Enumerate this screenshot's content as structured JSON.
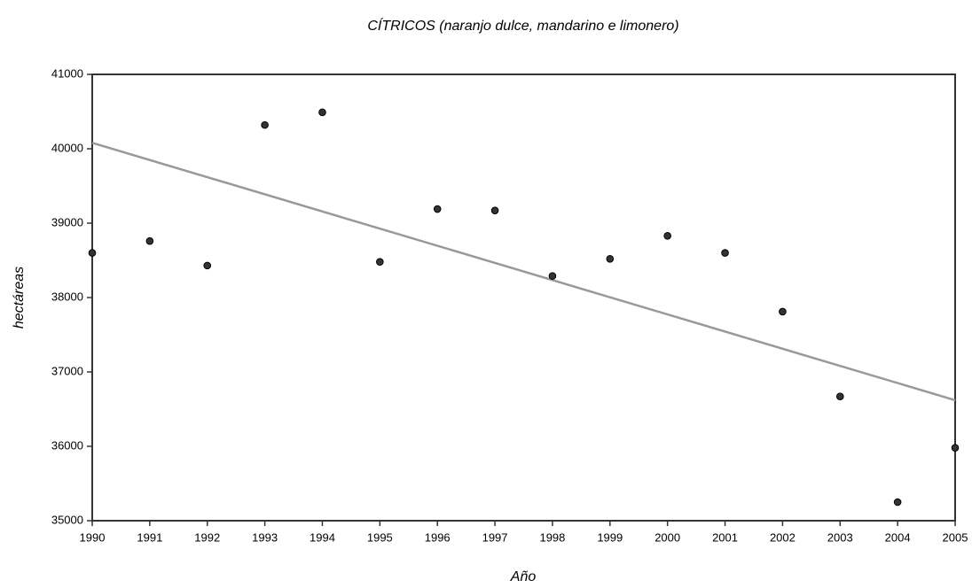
{
  "chart_data": {
    "type": "scatter",
    "title": "CÍTRICOS (naranjo dulce, mandarino e limonero)",
    "x_label": "Año",
    "y_label": "hectáreas",
    "x": [
      1990,
      1991,
      1992,
      1993,
      1994,
      1995,
      1996,
      1997,
      1998,
      1999,
      2000,
      2001,
      2002,
      2003,
      2004,
      2005
    ],
    "values": [
      38600,
      38760,
      38430,
      40320,
      40490,
      38480,
      39190,
      39170,
      38290,
      38520,
      38830,
      38600,
      37810,
      36670,
      35250,
      35980
    ],
    "color": "#333333",
    "trendline": {
      "x": [
        1990,
        2005
      ],
      "values": [
        40080,
        36620
      ],
      "color": "#999999"
    },
    "xlim": [
      1990,
      2005
    ],
    "xticks": [
      1990,
      1991,
      1992,
      1993,
      1994,
      1995,
      1996,
      1997,
      1998,
      1999,
      2000,
      2001,
      2002,
      2003,
      2004,
      2005
    ],
    "ylim": [
      35000,
      41000
    ],
    "yticks": [
      35000,
      36000,
      37000,
      38000,
      39000,
      40000,
      41000
    ]
  }
}
